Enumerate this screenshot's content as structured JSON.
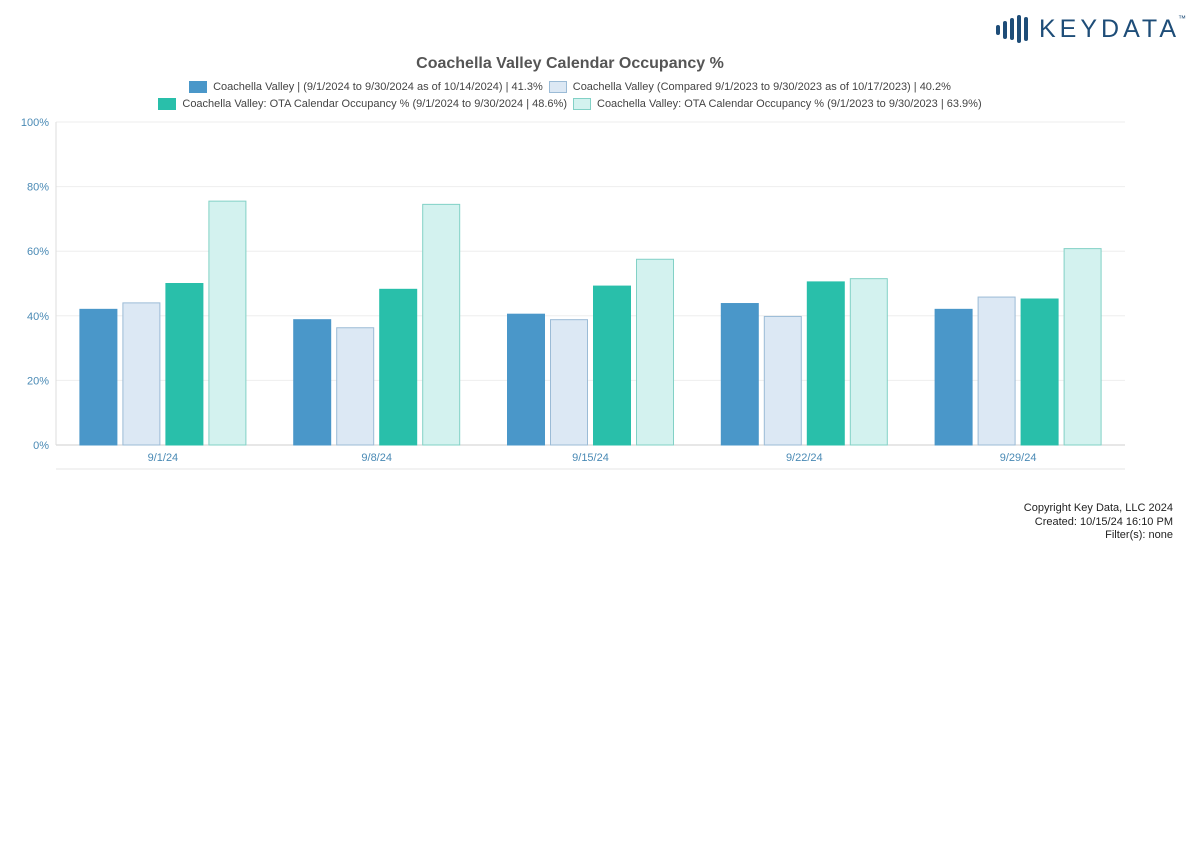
{
  "logo": {
    "text": "KEYDATA",
    "tm": "™"
  },
  "chart_data": {
    "type": "bar",
    "title": "Coachella Valley Calendar Occupancy %",
    "xlabel": "",
    "ylabel": "",
    "categories": [
      "9/1/24",
      "9/8/24",
      "9/15/24",
      "9/22/24",
      "9/29/24"
    ],
    "ylim": [
      0,
      100
    ],
    "yticks": [
      "0%",
      "20%",
      "40%",
      "60%",
      "80%",
      "100%"
    ],
    "grid": true,
    "legend_position": "top",
    "series": [
      {
        "name": "Coachella Valley | (9/1/2024 to 9/30/2024 as of 10/14/2024) | 41.3%",
        "color": "#4a97c9",
        "border": "#4a97c9",
        "values": [
          42,
          38.8,
          40.5,
          43.8,
          42
        ]
      },
      {
        "name": "Coachella Valley (Compared 9/1/2023 to 9/30/2023 as of 10/17/2023) | 40.2%",
        "color": "#dce8f4",
        "border": "#9bbbd6",
        "values": [
          44,
          36.3,
          38.8,
          39.8,
          45.8
        ]
      },
      {
        "name": "Coachella Valley: OTA Calendar Occupancy % (9/1/2024 to 9/30/2024 | 48.6%)",
        "color": "#29bfaa",
        "border": "#29bfaa",
        "values": [
          50,
          48.2,
          49.2,
          50.5,
          45.2
        ]
      },
      {
        "name": "Coachella Valley: OTA Calendar Occupancy % (9/1/2023 to 9/30/2023 | 63.9%)",
        "color": "#d3f2ef",
        "border": "#82d1c6",
        "values": [
          75.5,
          74.5,
          57.5,
          51.5,
          60.8
        ]
      }
    ]
  },
  "footer": {
    "copyright": "Copyright Key Data, LLC 2024",
    "created": "Created: 10/15/24 16:10 PM",
    "filters": "Filter(s): none"
  }
}
